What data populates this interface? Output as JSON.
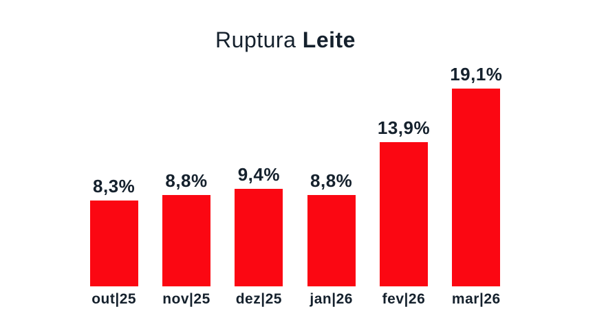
{
  "title": {
    "regular": "Ruptura",
    "bold": "Leite"
  },
  "colors": {
    "bar": "#fb0712",
    "text": "#15212d",
    "background": "#ffffff"
  },
  "chart_data": {
    "type": "bar",
    "title": "Ruptura Leite",
    "categories": [
      "out|25",
      "nov|25",
      "dez|25",
      "jan|26",
      "fev|26",
      "mar|26"
    ],
    "values": [
      8.3,
      8.8,
      9.4,
      8.8,
      13.9,
      19.1
    ],
    "value_labels": [
      "8,3%",
      "8,8%",
      "9,4%",
      "8,8%",
      "13,9%",
      "19,1%"
    ],
    "xlabel": "",
    "ylabel": "",
    "ylim": [
      0,
      20
    ],
    "grid": false,
    "legend": false,
    "axes_visible": false,
    "bar_color": "#fb0712",
    "label_position": "above-bar"
  }
}
